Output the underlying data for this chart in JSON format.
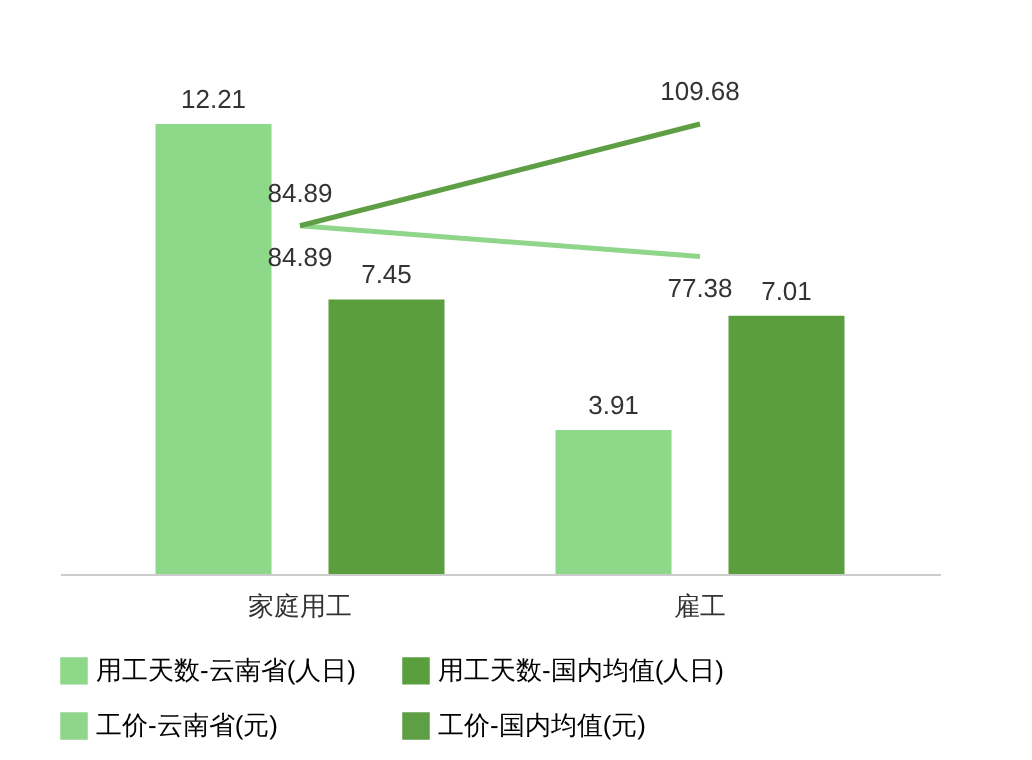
{
  "chart_data": {
    "type": "bar",
    "categories": [
      "家庭用工",
      "雇工"
    ],
    "series": [
      {
        "name": "用工天数-云南省(人日)",
        "color": "#8ed88a",
        "values": [
          12.21,
          3.91
        ]
      },
      {
        "name": "用工天数-国内均值(人日)",
        "color": "#5a9e3e",
        "values": [
          7.45,
          7.01
        ]
      },
      {
        "name": "工价-云南省(元)",
        "color": "#8fd68a",
        "values": [
          84.89,
          77.38
        ],
        "type": "line",
        "axis": "y2"
      },
      {
        "name": "工价-国内均值(元)",
        "color": "#5e9f45",
        "values": [
          84.89,
          109.68
        ],
        "type": "line",
        "axis": "y2"
      }
    ],
    "data_labels": true,
    "tick_labels": "x",
    "legend": "bottom"
  }
}
